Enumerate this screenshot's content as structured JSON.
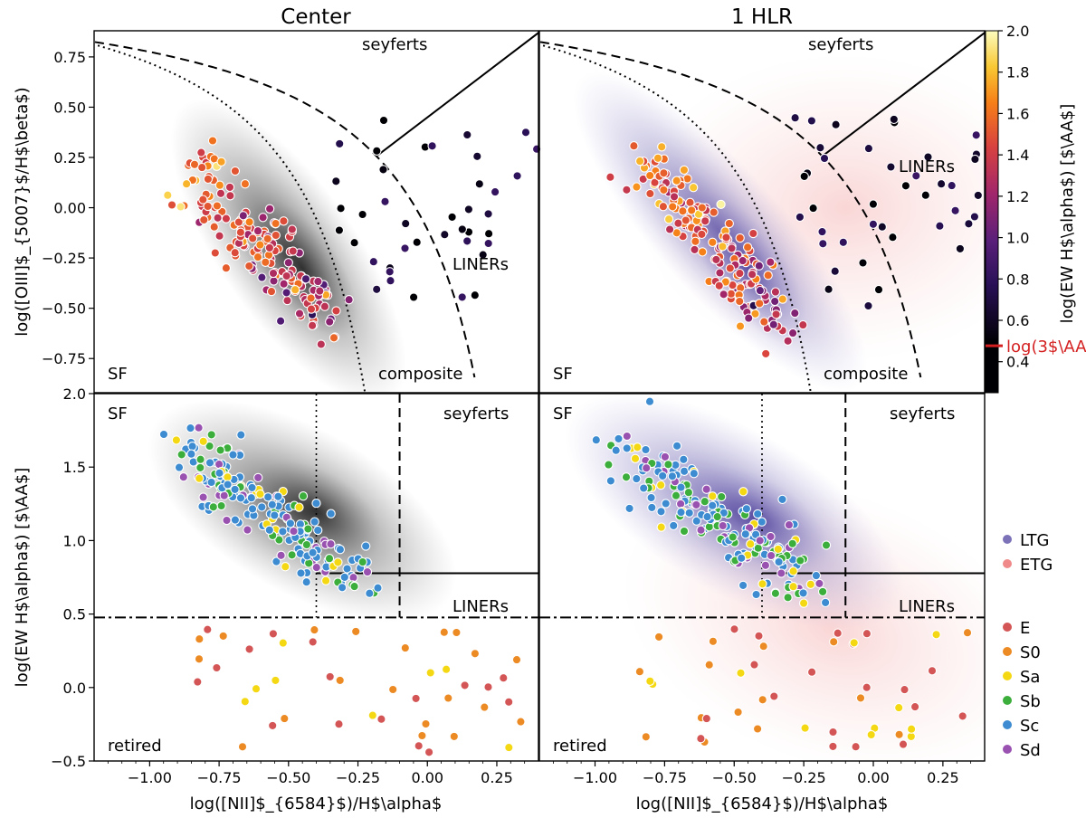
{
  "chart_data": {
    "type": "scatter",
    "panel_titles": [
      "Center",
      "1 HLR"
    ],
    "xlabel": "log([NII]$_{6584}$)/H$\\alpha$",
    "top_ylabel": "log([OIII]$_{5007}$/H$\\beta$)",
    "bottom_ylabel": "log(EW H$\\alpha$) [$\\AA$]",
    "colorbar_label": "log(EW H$\\alpha$) [$\\AA$]",
    "colorbar_marker_label": "log(3$\\AA$)",
    "colorbar_marker_value": 0.477,
    "colorbar_range": [
      0.25,
      2.0
    ],
    "colorbar_ticks": [
      "0.4",
      "0.6",
      "0.8",
      "1.0",
      "1.2",
      "1.4",
      "1.6",
      "1.8",
      "2.0"
    ],
    "x_range": [
      -1.2,
      0.4
    ],
    "x_ticks": [
      "-1.00",
      "-0.75",
      "-0.50",
      "-0.25",
      "0.00",
      "0.25"
    ],
    "top_y_range": [
      -0.92,
      0.88
    ],
    "top_y_ticks": [
      "-0.75",
      "-0.50",
      "-0.25",
      "0.00",
      "0.25",
      "0.50",
      "0.75"
    ],
    "bottom_y_range": [
      -0.5,
      2.0
    ],
    "bottom_y_ticks": [
      "-0.5",
      "0.0",
      "0.5",
      "1.0",
      "1.5",
      "2.0"
    ],
    "region_labels_top": {
      "seyferts": "seyferts",
      "liners": "LINERs",
      "sf": "SF",
      "composite": "composite"
    },
    "region_labels_bottom": {
      "sf": "SF",
      "seyferts": "seyferts",
      "liners": "LINERs",
      "retired": "retired"
    },
    "density_legend": [
      {
        "name": "LTG",
        "color": "#7b72b8"
      },
      {
        "name": "ETG",
        "color": "#f08a8a"
      }
    ],
    "morph_legend": [
      {
        "name": "E",
        "color": "#d45555"
      },
      {
        "name": "S0",
        "color": "#ec8a24"
      },
      {
        "name": "Sa",
        "color": "#f5d814"
      },
      {
        "name": "Sb",
        "color": "#3cae3c"
      },
      {
        "name": "Sc",
        "color": "#3d8bd0"
      },
      {
        "name": "Sd",
        "color": "#9a52b0"
      }
    ]
  }
}
